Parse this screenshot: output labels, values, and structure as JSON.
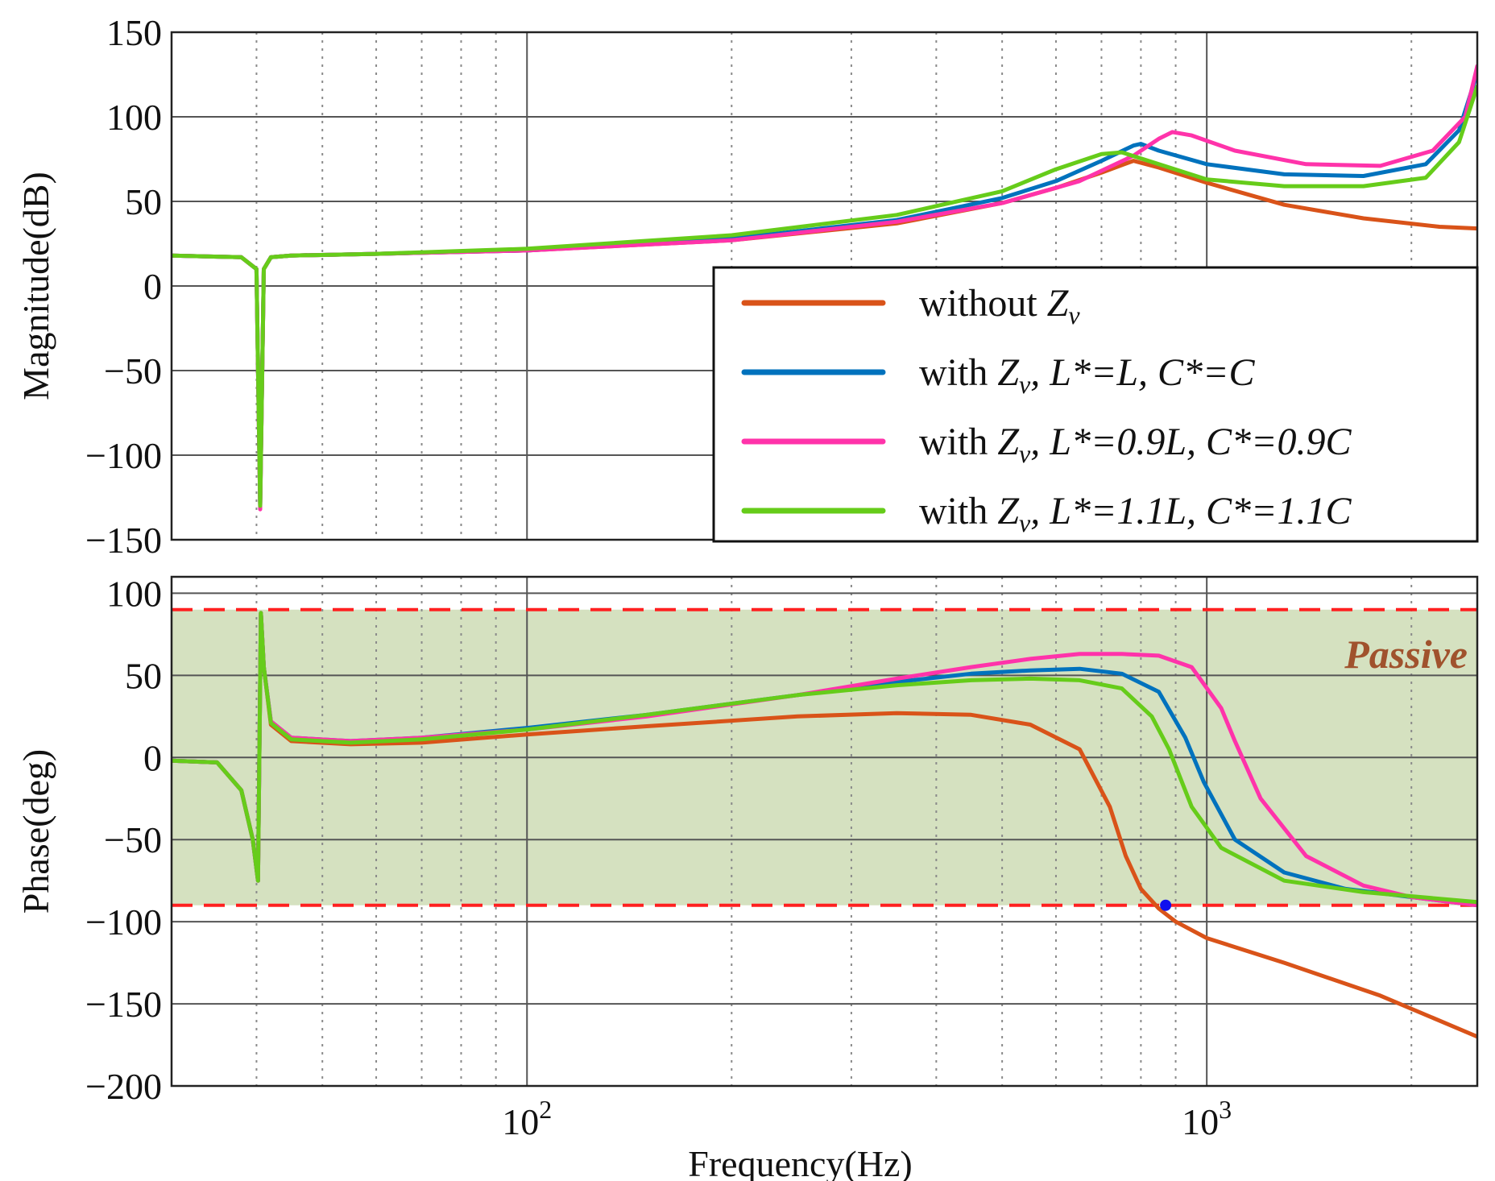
{
  "chart_data": [
    {
      "type": "line",
      "panel": "magnitude",
      "ylabel": "Magnitude(dB)",
      "ylim": [
        -150,
        150
      ],
      "yticks": [
        "150",
        "100",
        "50",
        "0",
        "−50",
        "−100",
        "−150"
      ],
      "yticks_values": [
        150,
        100,
        50,
        0,
        -50,
        -100,
        -150
      ],
      "xscale": "log",
      "xlim": [
        30,
        2500
      ],
      "grid": true,
      "legend": {
        "position": "lower-right",
        "entries": [
          {
            "base": "without ",
            "z": "Z",
            "sub": "v",
            "rest": ""
          },
          {
            "base": "with ",
            "z": "Z",
            "sub": "v",
            "rest": ", L*=L, C*=C"
          },
          {
            "base": "with ",
            "z": "Z",
            "sub": "v",
            "rest": ", L*=0.9L, C*=0.9C"
          },
          {
            "base": "with ",
            "z": "Z",
            "sub": "v",
            "rest": ", L*=1.1L, C*=1.1C"
          }
        ]
      },
      "series": [
        {
          "name": "without Zv",
          "color": "#d95319",
          "x": [
            30,
            38,
            40,
            40.5,
            41,
            42,
            45,
            60,
            100,
            200,
            350,
            500,
            600,
            700,
            780,
            850,
            1000,
            1300,
            1700,
            2200,
            2500
          ],
          "y": [
            18,
            17,
            10,
            -130,
            10,
            17,
            18,
            19,
            21,
            27,
            37,
            49,
            58,
            67,
            74,
            70,
            61,
            48,
            40,
            35,
            34
          ]
        },
        {
          "name": "with Zv, L*=L, C*=C",
          "color": "#0072bd",
          "x": [
            30,
            38,
            40,
            40.5,
            41,
            42,
            45,
            60,
            100,
            200,
            350,
            500,
            600,
            700,
            780,
            800,
            850,
            1000,
            1300,
            1700,
            2100,
            2350,
            2500
          ],
          "y": [
            18,
            17,
            10,
            -130,
            10,
            17,
            18,
            19,
            21,
            28,
            39,
            52,
            62,
            74,
            83,
            84,
            80,
            72,
            66,
            65,
            72,
            92,
            126
          ]
        },
        {
          "name": "with Zv, L*=0.9L, C*=0.9C",
          "color": "#ff33aa",
          "x": [
            30,
            38,
            40,
            40.5,
            41,
            42,
            45,
            60,
            100,
            200,
            350,
            500,
            650,
            780,
            850,
            890,
            950,
            1100,
            1400,
            1800,
            2150,
            2400,
            2500
          ],
          "y": [
            18,
            17,
            10,
            -132,
            10,
            17,
            18,
            19,
            21,
            27,
            38,
            49,
            62,
            77,
            87,
            91,
            89,
            80,
            72,
            71,
            80,
            100,
            130
          ]
        },
        {
          "name": "with Zv, L*=1.1L, C*=1.1C",
          "color": "#66cc1a",
          "x": [
            30,
            38,
            40,
            40.5,
            41,
            42,
            45,
            60,
            100,
            200,
            350,
            500,
            600,
            700,
            750,
            850,
            1000,
            1300,
            1700,
            2100,
            2350,
            2500
          ],
          "y": [
            18,
            17,
            10,
            -130,
            10,
            17,
            18,
            19,
            22,
            30,
            42,
            56,
            69,
            78,
            79,
            72,
            63,
            59,
            59,
            64,
            85,
            118
          ]
        }
      ]
    },
    {
      "type": "line",
      "panel": "phase",
      "ylabel": "Phase(deg)",
      "xlabel": "Frequency(Hz)",
      "ylim": [
        -200,
        110
      ],
      "yticks": [
        "100",
        "50",
        "0",
        "−50",
        "−100",
        "−150",
        "−200"
      ],
      "yticks_values": [
        100,
        50,
        0,
        -50,
        -100,
        -150,
        -200
      ],
      "xscale": "log",
      "xlim": [
        30,
        2500
      ],
      "xticks": [
        {
          "base": "10",
          "exp": "2",
          "value": 100
        },
        {
          "base": "10",
          "exp": "3",
          "value": 1000
        }
      ],
      "grid": true,
      "passive_band": {
        "low": -90,
        "high": 90,
        "label": "Passive",
        "fill": "#d5e1c0",
        "line_color": "#ff2020"
      },
      "marker": {
        "x": 870,
        "y": -90,
        "color": "#1010ee"
      },
      "series": [
        {
          "name": "without Zv",
          "color": "#d95319",
          "x": [
            30,
            35,
            38,
            39.5,
            40.2,
            40.6,
            41,
            42,
            45,
            55,
            70,
            100,
            150,
            250,
            350,
            450,
            550,
            650,
            720,
            760,
            800,
            850,
            900,
            1000,
            1300,
            1800,
            2500
          ],
          "y": [
            -2,
            -3,
            -20,
            -50,
            -75,
            88,
            55,
            20,
            10,
            8,
            9,
            14,
            19,
            25,
            27,
            26,
            20,
            5,
            -30,
            -60,
            -80,
            -92,
            -100,
            -110,
            -125,
            -145,
            -170
          ]
        },
        {
          "name": "with Zv, L*=L, C*=C",
          "color": "#0072bd",
          "x": [
            30,
            35,
            38,
            39.5,
            40.2,
            40.6,
            41,
            42,
            45,
            55,
            70,
            100,
            150,
            250,
            350,
            450,
            550,
            650,
            750,
            850,
            930,
            990,
            1100,
            1300,
            1600,
            2000,
            2500
          ],
          "y": [
            -2,
            -3,
            -20,
            -50,
            -75,
            88,
            55,
            22,
            12,
            10,
            12,
            18,
            26,
            38,
            46,
            51,
            53,
            54,
            51,
            40,
            12,
            -15,
            -50,
            -70,
            -80,
            -85,
            -90
          ]
        },
        {
          "name": "with Zv, L*=0.9L, C*=0.9C",
          "color": "#ff33aa",
          "x": [
            30,
            35,
            38,
            39.5,
            40.2,
            40.6,
            41,
            42,
            45,
            55,
            70,
            100,
            150,
            250,
            350,
            450,
            550,
            650,
            750,
            850,
            950,
            1050,
            1100,
            1200,
            1400,
            1700,
            2000,
            2500
          ],
          "y": [
            -2,
            -3,
            -20,
            -50,
            -75,
            88,
            55,
            22,
            12,
            10,
            12,
            17,
            25,
            38,
            48,
            55,
            60,
            63,
            63,
            62,
            55,
            30,
            10,
            -25,
            -60,
            -78,
            -85,
            -90
          ]
        },
        {
          "name": "with Zv, L*=1.1L, C*=1.1C",
          "color": "#66cc1a",
          "x": [
            30,
            35,
            38,
            39.5,
            40.2,
            40.6,
            41,
            42,
            45,
            55,
            70,
            100,
            150,
            250,
            350,
            450,
            550,
            650,
            750,
            830,
            880,
            950,
            1050,
            1300,
            1700,
            2500
          ],
          "y": [
            -2,
            -3,
            -20,
            -50,
            -75,
            88,
            55,
            21,
            11,
            9,
            11,
            17,
            26,
            38,
            44,
            47,
            48,
            47,
            42,
            25,
            5,
            -30,
            -55,
            -75,
            -82,
            -88
          ]
        }
      ]
    }
  ]
}
